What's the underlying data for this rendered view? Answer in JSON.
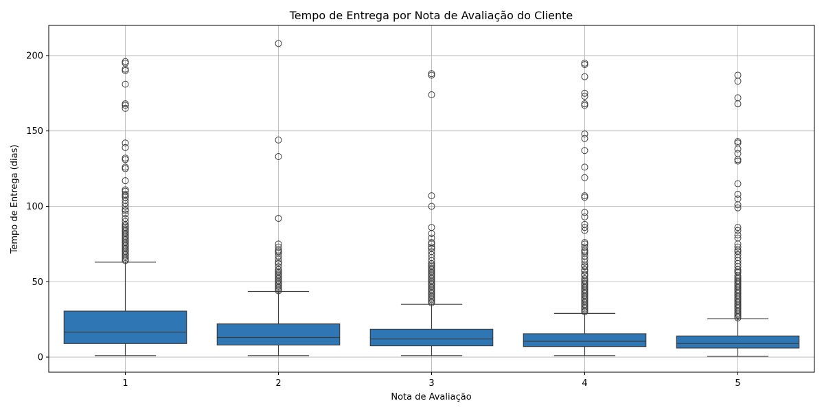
{
  "chart_data": {
    "type": "box",
    "title": "Tempo de Entrega por Nota de Avaliação do Cliente",
    "xlabel": "Nota de Avaliação",
    "ylabel": "Tempo de Entrega (dias)",
    "categories": [
      "1",
      "2",
      "3",
      "4",
      "5"
    ],
    "ylim": [
      -10,
      220
    ],
    "yticks": [
      0,
      50,
      100,
      150,
      200
    ],
    "grid": true,
    "box_color": "#2f77b4",
    "boxes": [
      {
        "category": "1",
        "whisker_low": 1,
        "q1": 9,
        "median": 16.5,
        "q3": 30.5,
        "whisker_high": 63,
        "outliers": [
          196,
          195,
          191,
          190,
          181,
          168,
          167,
          165,
          142,
          139,
          132,
          131,
          126,
          125,
          117,
          111,
          110,
          108,
          107,
          106,
          104,
          102,
          100,
          98,
          97,
          95,
          92,
          90,
          88,
          87,
          86,
          85,
          84,
          83,
          82,
          81,
          80,
          79,
          78,
          77,
          76,
          75,
          74,
          73,
          72,
          71,
          70,
          69,
          68,
          67,
          66,
          65,
          64
        ]
      },
      {
        "category": "2",
        "whisker_low": 1,
        "q1": 8,
        "median": 13,
        "q3": 22,
        "whisker_high": 43.5,
        "outliers": [
          208,
          144,
          133,
          92,
          75,
          73,
          71,
          70,
          69,
          67,
          65,
          63,
          62,
          60,
          58,
          57,
          56,
          55,
          54,
          53,
          52,
          51,
          50,
          49,
          48,
          47,
          46,
          45,
          44
        ]
      },
      {
        "category": "3",
        "whisker_low": 1,
        "q1": 7.5,
        "median": 12,
        "q3": 18.5,
        "whisker_high": 35,
        "outliers": [
          188,
          187,
          174,
          107,
          100,
          86,
          82,
          79,
          76,
          75,
          73,
          72,
          70,
          68,
          66,
          64,
          62,
          61,
          60,
          59,
          58,
          57,
          56,
          55,
          54,
          53,
          52,
          51,
          50,
          49,
          48,
          47,
          46,
          45,
          44,
          43,
          42,
          41,
          40,
          39,
          38,
          37,
          36
        ]
      },
      {
        "category": "4",
        "whisker_low": 1,
        "q1": 7,
        "median": 10.5,
        "q3": 15.5,
        "whisker_high": 29,
        "outliers": [
          195,
          194,
          186,
          175,
          173,
          168,
          167,
          148,
          145,
          137,
          126,
          119,
          107,
          106,
          96,
          93,
          88,
          86,
          84,
          76,
          75,
          73,
          71,
          70,
          69,
          67,
          65,
          63,
          61,
          60,
          58,
          57,
          55,
          54,
          52,
          51,
          50,
          49,
          48,
          47,
          46,
          45,
          44,
          43,
          42,
          41,
          40,
          39,
          38,
          37,
          36,
          35,
          34,
          33,
          32,
          31,
          30
        ]
      },
      {
        "category": "5",
        "whisker_low": 0.5,
        "q1": 6,
        "median": 9,
        "q3": 14,
        "whisker_high": 25.5,
        "outliers": [
          187,
          183,
          172,
          168,
          143,
          142,
          138,
          135,
          131,
          130,
          115,
          108,
          105,
          101,
          99,
          86,
          84,
          81,
          79,
          75,
          73,
          71,
          70,
          68,
          66,
          64,
          62,
          60,
          58,
          57,
          56,
          54,
          53,
          52,
          51,
          50,
          49,
          48,
          47,
          46,
          45,
          44,
          43,
          42,
          41,
          40,
          39,
          38,
          37,
          36,
          35,
          34,
          33,
          32,
          31,
          30,
          29,
          28,
          27,
          26
        ]
      }
    ]
  }
}
